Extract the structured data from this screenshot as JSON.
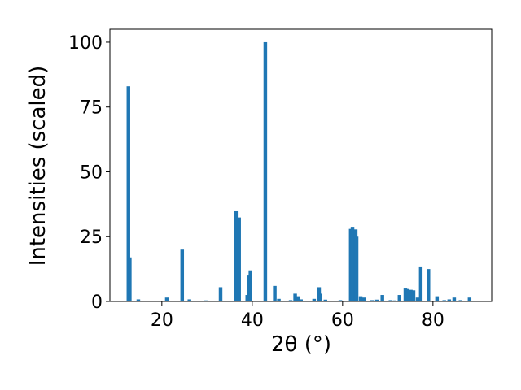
{
  "chart_data": {
    "type": "bar",
    "x_label": "2θ (°)",
    "y_label": "Intensities (scaled)",
    "color": "#1f77b4",
    "bar_width": 0.8,
    "x": [
      12.6,
      12.9,
      14.8,
      21.1,
      24.5,
      26.1,
      29.7,
      33.0,
      36.4,
      37.1,
      38.9,
      39.3,
      39.6,
      42.9,
      45.0,
      45.9,
      48.5,
      49.5,
      50.1,
      50.8,
      53.7,
      54.8,
      55.1,
      56.2,
      59.5,
      61.8,
      62.2,
      62.9,
      63.1,
      64.0,
      64.7,
      66.5,
      67.6,
      68.8,
      70.6,
      71.5,
      72.6,
      73.9,
      74.4,
      75.1,
      75.7,
      76.6,
      77.3,
      79.0,
      80.9,
      82.5,
      83.6,
      84.7,
      86.1,
      88.1
    ],
    "values": [
      83,
      17,
      0.8,
      1.5,
      20,
      0.8,
      0.4,
      5.5,
      34.8,
      32.4,
      2.5,
      10,
      12,
      100,
      6,
      1,
      0.5,
      3,
      2,
      0.8,
      1,
      5.5,
      3,
      0.7,
      0.5,
      28,
      28.8,
      27.8,
      25,
      2,
      1.5,
      0.5,
      0.7,
      2.5,
      0.5,
      0.4,
      2.5,
      5,
      4.8,
      4.5,
      4.3,
      1.5,
      13.5,
      12.5,
      2,
      0.5,
      0.8,
      1.5,
      0.5,
      1.5
    ],
    "xlim": [
      8.5,
      93
    ],
    "ylim": [
      0,
      105
    ],
    "xticks": [
      20,
      40,
      60,
      80
    ],
    "yticks": [
      0,
      25,
      50,
      75,
      100
    ],
    "grid": false
  }
}
